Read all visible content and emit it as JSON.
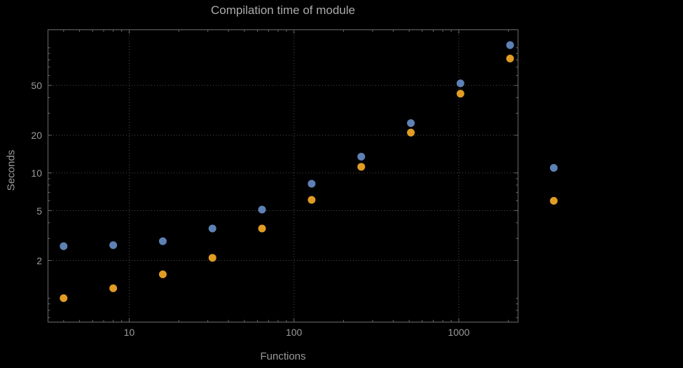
{
  "title": "Compilation time of module",
  "colors": {
    "background": "#000000",
    "frame": "#6b6b6b",
    "grid": "#4d4d4d",
    "text": "#9a9a9a",
    "title_text": "#ababab",
    "series1": "#5e81b5",
    "series2": "#e19c24"
  },
  "chart_data": {
    "type": "scatter",
    "title": "Compilation time of module",
    "xlabel": "Functions",
    "ylabel": "Seconds",
    "x_scale": "log",
    "y_scale": "log",
    "grid": true,
    "legend_position": "right",
    "x_range": [
      3.2,
      2300
    ],
    "y_range": [
      0.64,
      140
    ],
    "x_ticks": [
      10,
      100,
      1000
    ],
    "x_tick_labels": [
      "10",
      "100",
      "1000"
    ],
    "y_ticks": [
      2,
      5,
      10,
      20,
      50
    ],
    "y_tick_labels": [
      "2",
      "5",
      "10",
      "20",
      "50"
    ],
    "x": [
      4,
      8,
      16,
      32,
      64,
      128,
      256,
      512,
      1024,
      2048
    ],
    "series": [
      {
        "name": "blue",
        "color": "#5e81b5",
        "values": [
          2.6,
          2.65,
          2.85,
          3.6,
          5.1,
          8.2,
          13.5,
          25,
          52,
          105
        ]
      },
      {
        "name": "orange",
        "color": "#e19c24",
        "values": [
          1.0,
          1.2,
          1.55,
          2.1,
          3.6,
          6.1,
          11.2,
          21,
          43,
          82
        ]
      }
    ]
  },
  "legend": {
    "markers": [
      {
        "name": "blue-series",
        "color": "#5e81b5"
      },
      {
        "name": "orange-series",
        "color": "#e19c24"
      }
    ]
  }
}
